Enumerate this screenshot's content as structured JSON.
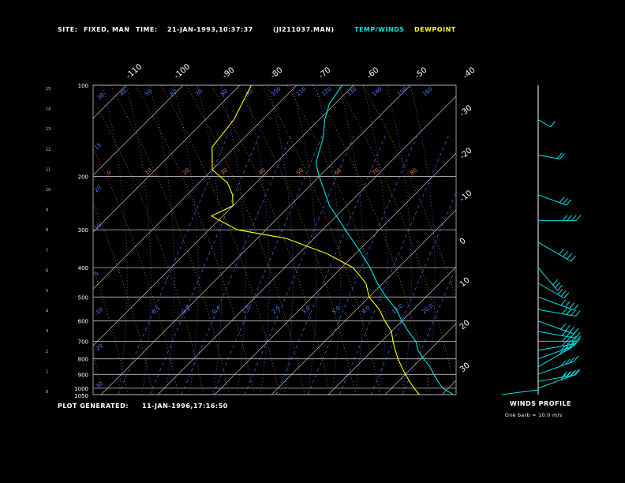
{
  "header": {
    "site_label": "SITE:",
    "site_value": "FIXED, MAN",
    "time_label": "TIME:",
    "time_value": "21-JAN-1993,10:37:37",
    "file_name": "(JI211037.MAN)",
    "legend_temp": "TEMP/WINDS",
    "legend_dew": "DEWPOINT"
  },
  "footer": {
    "generated_label": "PLOT GENERATED:",
    "generated_value": "11-JAN-1996,17:16:50"
  },
  "winds": {
    "title": "WINDS PROFILE",
    "note": "One barb = 10.0 m/s"
  },
  "colors": {
    "temp": "#00e5e5",
    "dewpoint": "#ffff00",
    "isotherm": "#c0c0c0",
    "isobar": "#c0c0c0",
    "dry_adiabat": "#e08040",
    "moist_adiabat": "#5080ff",
    "mixing_ratio": "#5080ff"
  },
  "chart_data": {
    "type": "line",
    "pressure_ticks": [
      100,
      200,
      300,
      400,
      500,
      600,
      700,
      800,
      900,
      1000,
      1050
    ],
    "height_ticks": [
      "0",
      "1",
      "2",
      "3",
      "4",
      "5",
      "6",
      "7",
      "8",
      "9",
      "10",
      "11",
      "12",
      "13",
      "14",
      "15"
    ],
    "top_temp_labels": [
      "-110",
      "-100",
      "-90",
      "-80",
      "-70",
      "-60",
      "-50",
      "-40"
    ],
    "right_temp_labels": [
      "-30",
      "-20",
      "-10",
      "0",
      "10",
      "20",
      "30"
    ],
    "dry_adiabat_labels": [
      "30",
      "40",
      "50",
      "60",
      "70",
      "80",
      "90",
      "100",
      "110",
      "120",
      "130",
      "140",
      "150",
      "160"
    ],
    "theta_labels": [
      "0",
      "10",
      "20",
      "30",
      "40",
      "50",
      "60",
      "70",
      "80"
    ],
    "mixing_ratio_labels": [
      "0.1",
      "0.2",
      "0.4",
      "1.0",
      "2.0",
      "3.0",
      "5.0",
      "8.0",
      "12.0",
      "20.0"
    ],
    "left_axis_labels": [
      "15",
      "20",
      "10",
      "5",
      "-10",
      "-20",
      "-30"
    ],
    "temperature_profile": [
      {
        "p": 1050,
        "t": 2.0
      },
      {
        "p": 1000,
        "t": -1.0
      },
      {
        "p": 950,
        "t": -3.0
      },
      {
        "p": 900,
        "t": -5.0
      },
      {
        "p": 850,
        "t": -7.0
      },
      {
        "p": 800,
        "t": -9.5
      },
      {
        "p": 750,
        "t": -12.0
      },
      {
        "p": 700,
        "t": -14.0
      },
      {
        "p": 650,
        "t": -17.0
      },
      {
        "p": 600,
        "t": -20.0
      },
      {
        "p": 550,
        "t": -23.0
      },
      {
        "p": 500,
        "t": -27.0
      },
      {
        "p": 450,
        "t": -31.0
      },
      {
        "p": 400,
        "t": -35.0
      },
      {
        "p": 350,
        "t": -40.0
      },
      {
        "p": 300,
        "t": -46.0
      },
      {
        "p": 270,
        "t": -50.0
      },
      {
        "p": 250,
        "t": -53.0
      },
      {
        "p": 220,
        "t": -57.0
      },
      {
        "p": 200,
        "t": -60.0
      },
      {
        "p": 180,
        "t": -63.0
      },
      {
        "p": 150,
        "t": -66.0
      },
      {
        "p": 130,
        "t": -69.0
      },
      {
        "p": 115,
        "t": -71.0
      },
      {
        "p": 100,
        "t": -72.0
      }
    ],
    "dewpoint_profile": [
      {
        "p": 1050,
        "t": -4.0
      },
      {
        "p": 1000,
        "t": -6.0
      },
      {
        "p": 950,
        "t": -8.0
      },
      {
        "p": 900,
        "t": -10.0
      },
      {
        "p": 850,
        "t": -12.0
      },
      {
        "p": 800,
        "t": -14.0
      },
      {
        "p": 750,
        "t": -16.0
      },
      {
        "p": 700,
        "t": -18.0
      },
      {
        "p": 650,
        "t": -20.0
      },
      {
        "p": 600,
        "t": -23.0
      },
      {
        "p": 550,
        "t": -26.0
      },
      {
        "p": 500,
        "t": -30.0
      },
      {
        "p": 450,
        "t": -33.0
      },
      {
        "p": 400,
        "t": -38.0
      },
      {
        "p": 360,
        "t": -45.0
      },
      {
        "p": 320,
        "t": -55.0
      },
      {
        "p": 300,
        "t": -65.0
      },
      {
        "p": 270,
        "t": -72.0
      },
      {
        "p": 250,
        "t": -70.0
      },
      {
        "p": 230,
        "t": -72.0
      },
      {
        "p": 210,
        "t": -75.0
      },
      {
        "p": 190,
        "t": -80.0
      },
      {
        "p": 160,
        "t": -84.0
      },
      {
        "p": 130,
        "t": -85.0
      },
      {
        "p": 100,
        "t": -88.0
      }
    ],
    "wind_barbs": [
      {
        "p": 130,
        "dir": 300,
        "speed": 10
      },
      {
        "p": 170,
        "dir": 280,
        "speed": 20
      },
      {
        "p": 230,
        "dir": 290,
        "speed": 30
      },
      {
        "p": 280,
        "dir": 270,
        "speed": 40
      },
      {
        "p": 330,
        "dir": 300,
        "speed": 40
      },
      {
        "p": 400,
        "dir": 320,
        "speed": 30
      },
      {
        "p": 450,
        "dir": 300,
        "speed": 30
      },
      {
        "p": 500,
        "dir": 290,
        "speed": 40
      },
      {
        "p": 550,
        "dir": 280,
        "speed": 40
      },
      {
        "p": 600,
        "dir": 290,
        "speed": 40
      },
      {
        "p": 650,
        "dir": 280,
        "speed": 40
      },
      {
        "p": 700,
        "dir": 270,
        "speed": 40
      },
      {
        "p": 750,
        "dir": 260,
        "speed": 40
      },
      {
        "p": 800,
        "dir": 250,
        "speed": 40
      },
      {
        "p": 850,
        "dir": 240,
        "speed": 40
      },
      {
        "p": 900,
        "dir": 250,
        "speed": 40
      },
      {
        "p": 950,
        "dir": 260,
        "speed": 40
      },
      {
        "p": 1000,
        "dir": 250,
        "speed": 40
      }
    ]
  }
}
